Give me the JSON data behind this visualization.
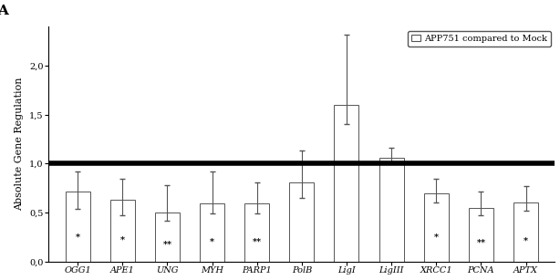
{
  "categories": [
    "OGG1",
    "APE1",
    "UNG",
    "MYH",
    "PARP1",
    "PolB",
    "LigI",
    "LigIII",
    "XRCC1",
    "PCNA",
    "APTX"
  ],
  "values": [
    0.72,
    0.63,
    0.5,
    0.59,
    0.59,
    0.81,
    1.6,
    1.06,
    0.7,
    0.55,
    0.6
  ],
  "errors_up": [
    0.2,
    0.22,
    0.28,
    0.33,
    0.22,
    0.32,
    0.72,
    0.1,
    0.15,
    0.17,
    0.17
  ],
  "errors_down": [
    0.18,
    0.16,
    0.08,
    0.1,
    0.1,
    0.16,
    0.2,
    0.06,
    0.1,
    0.08,
    0.08
  ],
  "significance": [
    "*",
    "*",
    "**",
    "*",
    "**",
    "",
    "",
    "",
    "*",
    "**",
    "*"
  ],
  "bar_color": "#ffffff",
  "bar_edgecolor": "#555555",
  "reference_line": 1.0,
  "ylim": [
    0.0,
    2.4
  ],
  "yticks": [
    0.0,
    0.5,
    1.0,
    1.5,
    2.0
  ],
  "ytick_labels": [
    "0,0",
    "0,5",
    "1,0",
    "1,5",
    "2,0"
  ],
  "ylabel": "Absolute Gene Regulation",
  "legend_label": "APP751 compared to Mock",
  "panel_label": "A",
  "background_color": "#ffffff",
  "bar_width": 0.55,
  "axis_fontsize": 8,
  "tick_fontsize": 7,
  "sig_fontsize": 7,
  "ylabel_fontsize": 8
}
